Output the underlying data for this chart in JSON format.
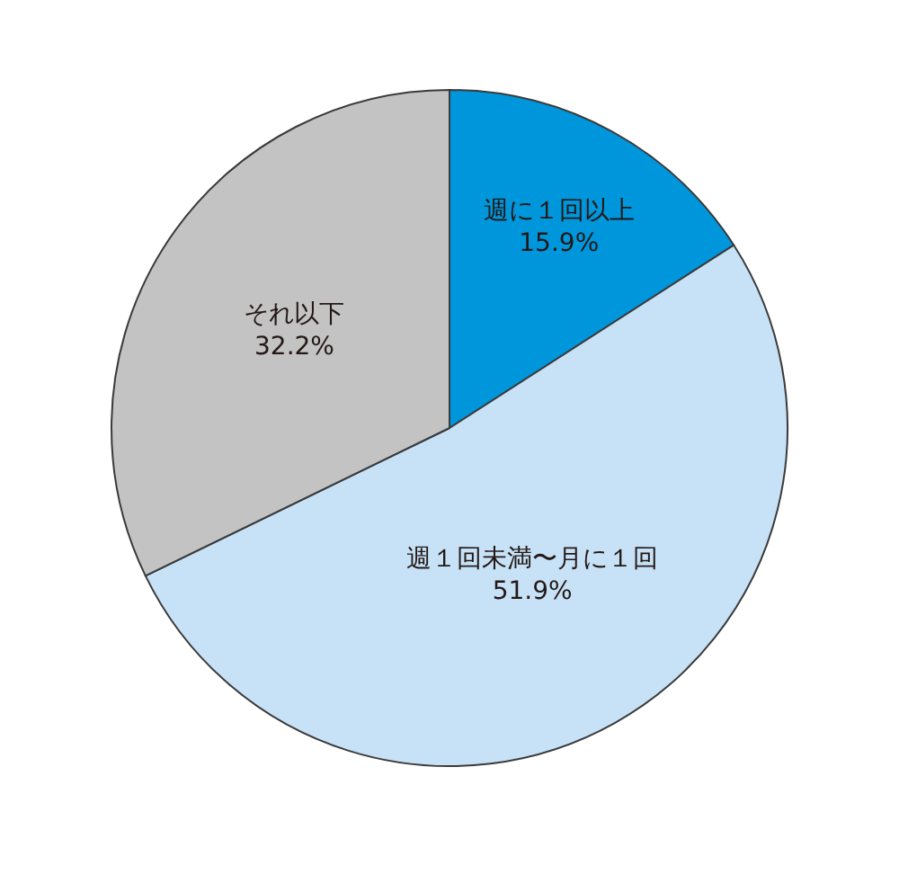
{
  "chart_data": {
    "type": "pie",
    "categories": [
      "週に１回以上",
      "週１回未満〜月に１回",
      "それ以下"
    ],
    "values": [
      15.9,
      51.9,
      32.2
    ],
    "value_labels": [
      "15.9%",
      "51.9%",
      "32.2%"
    ],
    "colors": [
      "#0096dc",
      "#c7e2f7",
      "#c3c3c4"
    ],
    "legend": false
  }
}
